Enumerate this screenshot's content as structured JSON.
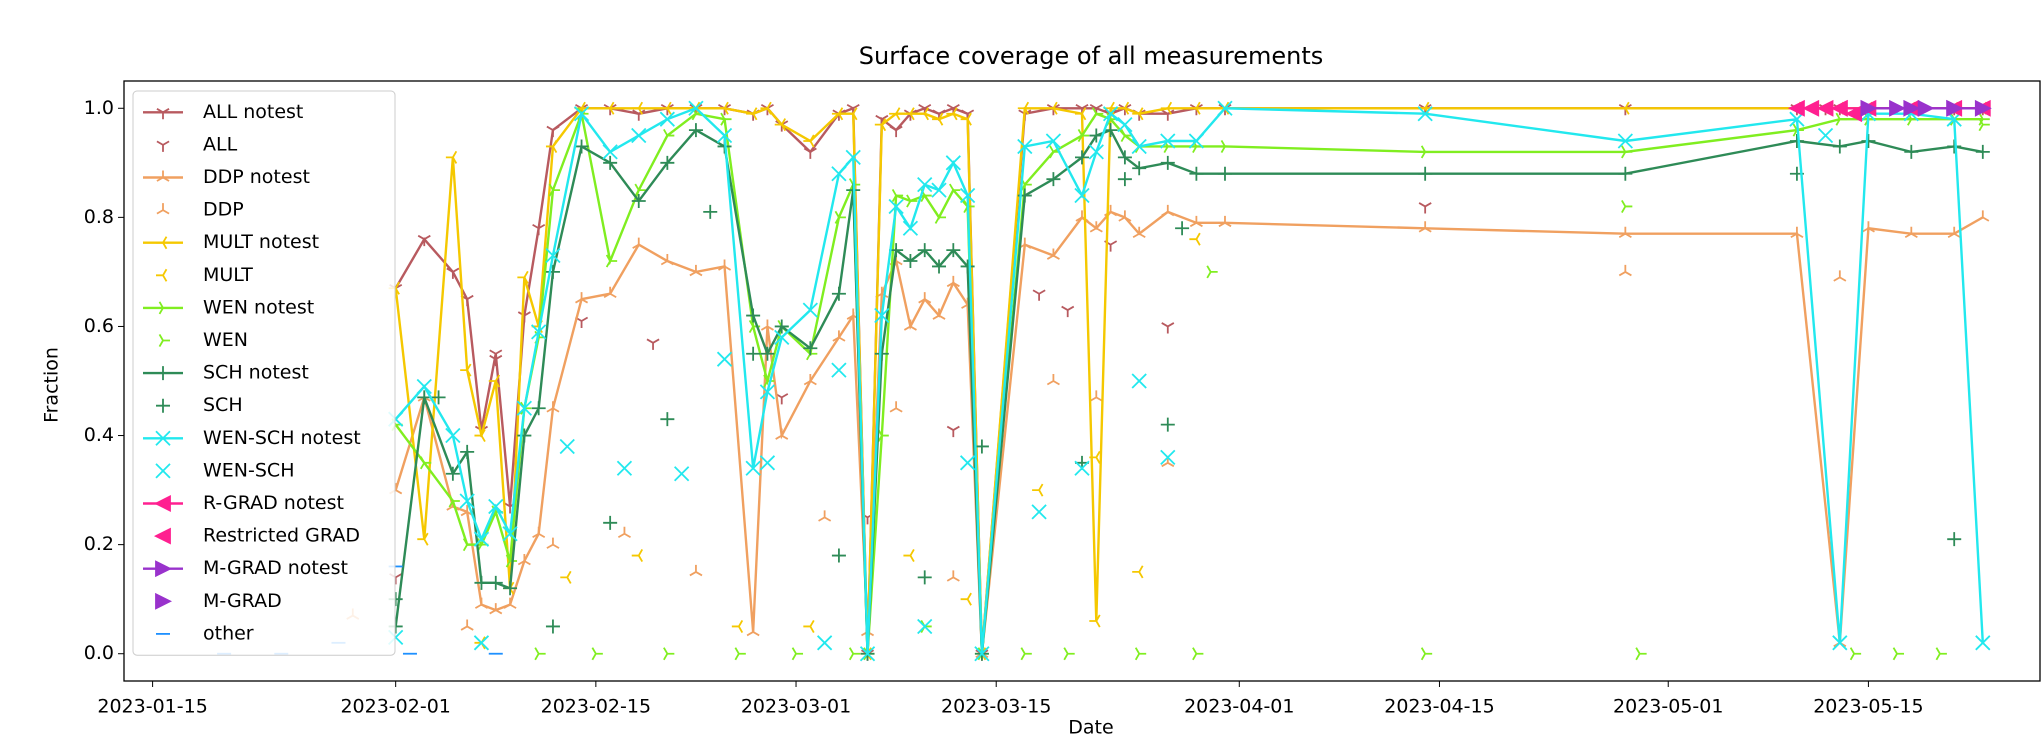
{
  "chart_data": {
    "type": "line",
    "title": "Surface coverage of all measurements",
    "xlabel": "Date",
    "ylabel": "Fraction",
    "xlim": [
      "2023-01-13",
      "2023-05-27"
    ],
    "ylim": [
      -0.05,
      1.05
    ],
    "xticks": [
      "2023-01-15",
      "2023-02-01",
      "2023-02-15",
      "2023-03-01",
      "2023-03-15",
      "2023-04-01",
      "2023-04-15",
      "2023-05-01",
      "2023-05-15"
    ],
    "yticks": [
      {
        "value": 0,
        "label": "0.0"
      },
      0.2,
      0.4,
      0.6,
      0.8,
      {
        "value": 1,
        "label": "1.0"
      }
    ],
    "legend": "upper left",
    "x": [
      "2023-02-01",
      "2023-02-03",
      "2023-02-05",
      "2023-02-06",
      "2023-02-07",
      "2023-02-08",
      "2023-02-09",
      "2023-02-10",
      "2023-02-11",
      "2023-02-12",
      "2023-02-14",
      "2023-02-16",
      "2023-02-18",
      "2023-02-20",
      "2023-02-22",
      "2023-02-24",
      "2023-02-26",
      "2023-02-27",
      "2023-02-28",
      "2023-03-02",
      "2023-03-04",
      "2023-03-05",
      "2023-03-06",
      "2023-03-07",
      "2023-03-08",
      "2023-03-09",
      "2023-03-10",
      "2023-03-11",
      "2023-03-12",
      "2023-03-13",
      "2023-03-14",
      "2023-03-17",
      "2023-03-19",
      "2023-03-21",
      "2023-03-22",
      "2023-03-23",
      "2023-03-24",
      "2023-03-25",
      "2023-03-27",
      "2023-03-29",
      "2023-03-31",
      "2023-04-14",
      "2023-04-28",
      "2023-05-10",
      "2023-05-13",
      "2023-05-15",
      "2023-05-18",
      "2023-05-21",
      "2023-05-23"
    ],
    "series": [
      {
        "name": "ALL notest",
        "kind": "line",
        "marker": "tri_down",
        "color": "#b85a5f",
        "values": [
          0.67,
          0.76,
          0.7,
          0.65,
          0.41,
          0.55,
          0.27,
          0.62,
          0.78,
          0.96,
          1.0,
          1.0,
          0.99,
          1.0,
          1.0,
          1.0,
          0.99,
          1.0,
          0.97,
          0.92,
          0.99,
          1.0,
          0.0,
          0.98,
          0.96,
          0.99,
          1.0,
          0.99,
          1.0,
          0.99,
          0.0,
          0.99,
          1.0,
          1.0,
          1.0,
          0.99,
          1.0,
          0.99,
          0.99,
          1.0,
          1.0,
          1.0,
          1.0,
          1.0,
          1.0,
          1.0,
          1.0,
          1.0,
          1.0
        ]
      },
      {
        "name": "ALL",
        "kind": "scatter",
        "marker": "tri_down",
        "color": "#b85a5f",
        "x": [
          "2023-02-01",
          "2023-02-08",
          "2023-02-14",
          "2023-02-19",
          "2023-02-28",
          "2023-03-06",
          "2023-03-12",
          "2023-03-18",
          "2023-03-20",
          "2023-03-23",
          "2023-03-27",
          "2023-04-14",
          "2023-05-12"
        ],
        "values": [
          0.14,
          0.54,
          0.61,
          0.57,
          0.47,
          0.25,
          0.41,
          0.66,
          0.63,
          0.75,
          0.6,
          0.82,
          1.0
        ]
      },
      {
        "name": "DDP notest",
        "kind": "line",
        "marker": "tri_up",
        "color": "#f0a060",
        "values": [
          0.3,
          0.47,
          0.27,
          0.26,
          0.09,
          0.08,
          0.09,
          0.17,
          0.22,
          0.45,
          0.65,
          0.66,
          0.75,
          0.72,
          0.7,
          0.71,
          0.04,
          0.6,
          0.4,
          0.5,
          0.58,
          0.62,
          0.04,
          0.66,
          0.72,
          0.6,
          0.65,
          0.62,
          0.68,
          0.64,
          0.0,
          0.75,
          0.73,
          0.8,
          0.78,
          0.81,
          0.8,
          0.77,
          0.81,
          0.79,
          0.79,
          0.78,
          0.77,
          0.77,
          0.02,
          0.78,
          0.77,
          0.77,
          0.8
        ]
      },
      {
        "name": "DDP",
        "kind": "scatter",
        "marker": "tri_up",
        "color": "#f0a060",
        "x": [
          "2023-01-29",
          "2023-02-06",
          "2023-02-12",
          "2023-02-17",
          "2023-02-22",
          "2023-03-03",
          "2023-03-08",
          "2023-03-12",
          "2023-03-19",
          "2023-03-22",
          "2023-03-27",
          "2023-04-28",
          "2023-05-13"
        ],
        "values": [
          0.07,
          0.05,
          0.2,
          0.22,
          0.15,
          0.25,
          0.45,
          0.14,
          0.5,
          0.47,
          0.35,
          0.7,
          0.69
        ]
      },
      {
        "name": "MULT notest",
        "kind": "line",
        "marker": "tri_left",
        "color": "#f5c800",
        "values": [
          0.67,
          0.21,
          0.91,
          0.52,
          0.4,
          0.5,
          0.12,
          0.69,
          0.6,
          0.93,
          1.0,
          1.0,
          1.0,
          1.0,
          1.0,
          1.0,
          0.99,
          1.0,
          0.97,
          0.94,
          0.99,
          0.99,
          0.0,
          0.97,
          0.99,
          0.99,
          0.99,
          0.98,
          0.99,
          0.98,
          0.0,
          1.0,
          1.0,
          0.99,
          0.06,
          1.0,
          1.0,
          0.99,
          1.0,
          1.0,
          1.0,
          1.0,
          1.0,
          1.0,
          1.0,
          1.0,
          1.0,
          1.0,
          1.0
        ]
      },
      {
        "name": "MULT",
        "kind": "scatter",
        "marker": "tri_left",
        "color": "#f5c800",
        "x": [
          "2023-02-07",
          "2023-02-13",
          "2023-02-18",
          "2023-02-25",
          "2023-03-02",
          "2023-03-09",
          "2023-03-13",
          "2023-03-18",
          "2023-03-22",
          "2023-03-25",
          "2023-03-29"
        ],
        "values": [
          0.02,
          0.14,
          0.18,
          0.05,
          0.05,
          0.18,
          0.1,
          0.3,
          0.36,
          0.15,
          0.76
        ]
      },
      {
        "name": "WEN notest",
        "kind": "line",
        "marker": "tri_right",
        "color": "#80ee20",
        "values": [
          0.42,
          0.35,
          0.28,
          0.2,
          0.2,
          0.26,
          0.17,
          0.45,
          0.58,
          0.85,
          0.99,
          0.72,
          0.85,
          0.95,
          0.99,
          0.98,
          0.6,
          0.5,
          0.6,
          0.55,
          0.8,
          0.86,
          0.0,
          0.4,
          0.84,
          0.83,
          0.84,
          0.8,
          0.85,
          0.82,
          0.0,
          0.86,
          0.92,
          0.95,
          0.99,
          0.98,
          0.95,
          0.93,
          0.93,
          0.93,
          0.93,
          0.92,
          0.92,
          0.96,
          0.98,
          0.98,
          0.98,
          0.98,
          0.98
        ]
      },
      {
        "name": "WEN",
        "kind": "scatter",
        "marker": "tri_right",
        "color": "#80ee20",
        "x": [
          "2023-02-11",
          "2023-02-15",
          "2023-02-20",
          "2023-02-25",
          "2023-03-01",
          "2023-03-05",
          "2023-03-10",
          "2023-03-17",
          "2023-03-20",
          "2023-03-25",
          "2023-03-29",
          "2023-03-30",
          "2023-04-14",
          "2023-04-28",
          "2023-04-29",
          "2023-05-14",
          "2023-05-17",
          "2023-05-20",
          "2023-05-23"
        ],
        "values": [
          0,
          0,
          0,
          0,
          0,
          0,
          0.05,
          0,
          0,
          0,
          0,
          0.7,
          0,
          0.82,
          0,
          0,
          0,
          0,
          0.97
        ]
      },
      {
        "name": "SCH notest",
        "kind": "line",
        "marker": "plus",
        "color": "#2e8b57",
        "values": [
          0.05,
          0.47,
          0.33,
          0.37,
          0.13,
          0.13,
          0.12,
          0.4,
          0.45,
          0.7,
          0.93,
          0.9,
          0.83,
          0.9,
          0.96,
          0.93,
          0.62,
          0.55,
          0.6,
          0.56,
          0.66,
          0.85,
          0.0,
          0.55,
          0.74,
          0.72,
          0.74,
          0.71,
          0.74,
          0.71,
          0.0,
          0.84,
          0.87,
          0.91,
          0.95,
          0.96,
          0.91,
          0.89,
          0.9,
          0.88,
          0.88,
          0.88,
          0.88,
          0.94,
          0.93,
          0.94,
          0.92,
          0.93,
          0.92
        ]
      },
      {
        "name": "SCH",
        "kind": "scatter",
        "marker": "plus",
        "color": "#2e8b57",
        "x": [
          "2023-02-01",
          "2023-02-04",
          "2023-02-12",
          "2023-02-16",
          "2023-02-20",
          "2023-02-23",
          "2023-02-26",
          "2023-03-04",
          "2023-03-10",
          "2023-03-14",
          "2023-03-21",
          "2023-03-24",
          "2023-03-27",
          "2023-03-28",
          "2023-05-10",
          "2023-05-21"
        ],
        "values": [
          0.1,
          0.47,
          0.05,
          0.24,
          0.43,
          0.81,
          0.55,
          0.18,
          0.14,
          0.38,
          0.35,
          0.87,
          0.42,
          0.78,
          0.88,
          0.21
        ]
      },
      {
        "name": "WEN-SCH notest",
        "kind": "line",
        "marker": "x",
        "color": "#22e8ee",
        "values": [
          0.43,
          0.49,
          0.4,
          0.28,
          0.21,
          0.27,
          0.22,
          0.45,
          0.59,
          0.73,
          0.99,
          0.92,
          0.95,
          0.98,
          1.0,
          0.95,
          0.34,
          0.48,
          0.58,
          0.63,
          0.88,
          0.91,
          0.0,
          0.62,
          0.82,
          0.78,
          0.86,
          0.85,
          0.9,
          0.84,
          0.0,
          0.93,
          0.94,
          0.84,
          0.92,
          0.99,
          0.97,
          0.93,
          0.94,
          0.94,
          1.0,
          0.99,
          0.94,
          0.98,
          0.02,
          0.99,
          0.99,
          0.98,
          0.02
        ]
      },
      {
        "name": "WEN-SCH",
        "kind": "scatter",
        "marker": "x",
        "color": "#22e8ee",
        "x": [
          "2023-02-01",
          "2023-02-07",
          "2023-02-13",
          "2023-02-17",
          "2023-02-21",
          "2023-02-24",
          "2023-02-27",
          "2023-03-03",
          "2023-03-04",
          "2023-03-10",
          "2023-03-13",
          "2023-03-18",
          "2023-03-21",
          "2023-03-25",
          "2023-03-27",
          "2023-05-12"
        ],
        "values": [
          0.03,
          0.02,
          0.38,
          0.34,
          0.33,
          0.54,
          0.35,
          0.02,
          0.52,
          0.05,
          0.35,
          0.26,
          0.34,
          0.5,
          0.36,
          0.95
        ]
      },
      {
        "name": "R-GRAD notest",
        "kind": "line",
        "marker": "tri_fill_left",
        "color": "#ff2090",
        "values": [
          null,
          null,
          null,
          null,
          null,
          null,
          null,
          null,
          null,
          null,
          null,
          null,
          null,
          null,
          null,
          null,
          null,
          null,
          null,
          null,
          null,
          null,
          null,
          null,
          null,
          null,
          null,
          null,
          null,
          null,
          null,
          null,
          null,
          null,
          null,
          null,
          null,
          null,
          null,
          null,
          null,
          null,
          null,
          1.0,
          1.0,
          1.0,
          1.0,
          1.0,
          1.0
        ]
      },
      {
        "name": "Restricted GRAD",
        "kind": "scatter",
        "marker": "tri_fill_left",
        "color": "#ff2090",
        "x": [
          "2023-05-11",
          "2023-05-12",
          "2023-05-13",
          "2023-05-14"
        ],
        "values": [
          1.0,
          1.0,
          1.0,
          0.99
        ]
      },
      {
        "name": "M-GRAD notest",
        "kind": "line",
        "marker": "tri_fill_right",
        "color": "#9932cc",
        "values": [
          null,
          null,
          null,
          null,
          null,
          null,
          null,
          null,
          null,
          null,
          null,
          null,
          null,
          null,
          null,
          null,
          null,
          null,
          null,
          null,
          null,
          null,
          null,
          null,
          null,
          null,
          null,
          null,
          null,
          null,
          null,
          null,
          null,
          null,
          null,
          null,
          null,
          null,
          null,
          null,
          null,
          null,
          null,
          null,
          null,
          1.0,
          1.0,
          1.0,
          1.0
        ]
      },
      {
        "name": "M-GRAD",
        "kind": "scatter",
        "marker": "tri_fill_right",
        "color": "#9932cc",
        "x": [
          "2023-05-15",
          "2023-05-17",
          "2023-05-19",
          "2023-05-21"
        ],
        "values": [
          1.0,
          1.0,
          1.0,
          1.0
        ]
      },
      {
        "name": "other",
        "kind": "scatter",
        "marker": "hline",
        "color": "#1e90ff",
        "x": [
          "2023-01-20",
          "2023-01-24",
          "2023-01-28",
          "2023-02-01",
          "2023-02-02",
          "2023-02-08"
        ],
        "values": [
          0.0,
          0.0,
          0.02,
          0.16,
          0.0,
          0.0
        ]
      }
    ]
  }
}
